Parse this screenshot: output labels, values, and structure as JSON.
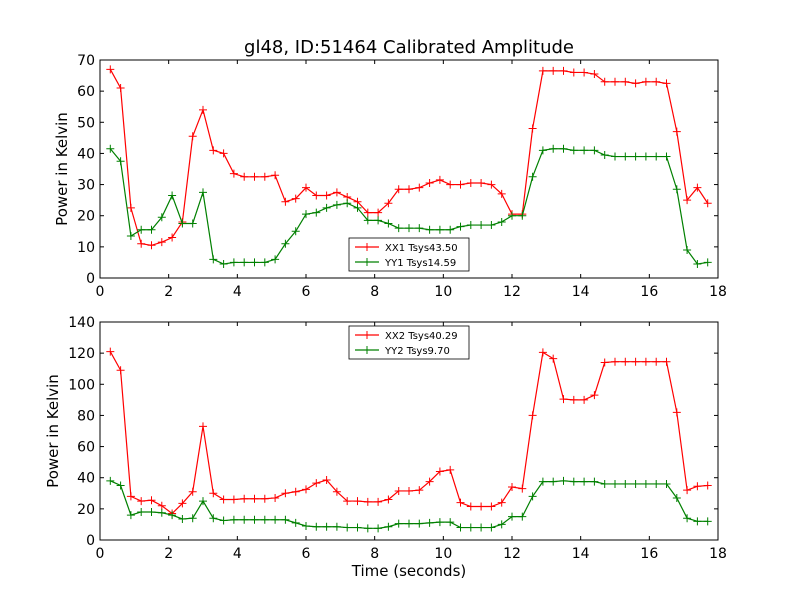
{
  "figure": {
    "title": "gl48, ID:51464 Calibrated Amplitude",
    "xlabel": "Time (seconds)"
  },
  "chart_data": [
    {
      "type": "line",
      "title": "gl48, ID:51464 Calibrated Amplitude",
      "xlabel": "",
      "ylabel": "Power in Kelvin",
      "xlim": [
        0,
        18
      ],
      "ylim": [
        0,
        70
      ],
      "xticks": [
        0,
        2,
        4,
        6,
        8,
        10,
        12,
        14,
        16,
        18
      ],
      "yticks": [
        0,
        10,
        20,
        30,
        40,
        50,
        60,
        70
      ],
      "grid": false,
      "legend": "lower-center",
      "x": [
        0.3,
        0.6,
        0.9,
        1.2,
        1.5,
        1.8,
        2.1,
        2.4,
        2.7,
        3.0,
        3.3,
        3.6,
        3.9,
        4.2,
        4.5,
        4.8,
        5.1,
        5.4,
        5.7,
        6.0,
        6.3,
        6.6,
        6.9,
        7.2,
        7.5,
        7.8,
        8.1,
        8.4,
        8.7,
        9.0,
        9.3,
        9.6,
        9.9,
        10.2,
        10.5,
        10.8,
        11.1,
        11.4,
        11.7,
        12.0,
        12.3,
        12.6,
        12.9,
        13.2,
        13.5,
        13.8,
        14.1,
        14.4,
        14.7,
        15.0,
        15.3,
        15.6,
        15.9,
        16.2,
        16.5,
        16.8,
        17.1,
        17.4,
        17.7
      ],
      "series": [
        {
          "name": "XX1 Tsys43.50",
          "color": "#ff0000",
          "values": [
            67,
            61,
            22.5,
            11,
            10.5,
            11.5,
            13,
            18,
            45.5,
            54,
            41,
            40,
            33.5,
            32.5,
            32.5,
            32.5,
            33,
            24.5,
            25.5,
            29,
            26.5,
            26.5,
            27.5,
            26,
            24.5,
            21,
            21,
            24,
            28.5,
            28.5,
            29,
            30.5,
            31.5,
            30,
            30,
            30.5,
            30.5,
            30,
            27,
            20.5,
            20.5,
            48,
            66.5,
            66.5,
            66.5,
            66,
            66,
            65.5,
            63,
            63,
            63,
            62.5,
            63,
            63,
            62.5,
            47,
            25,
            29,
            24
          ]
        },
        {
          "name": "YY1 Tsys14.59",
          "color": "#008000",
          "values": [
            41.5,
            37.5,
            13.5,
            15.5,
            15.5,
            19.5,
            26.5,
            17.5,
            17.5,
            27.5,
            6,
            4.5,
            5,
            5,
            5,
            5,
            6,
            11,
            15,
            20.5,
            21,
            22.5,
            23.5,
            24,
            22.5,
            18.5,
            18.5,
            17.5,
            16,
            16,
            16,
            15.5,
            15.5,
            15.5,
            16.5,
            17,
            17,
            17,
            18,
            20,
            20,
            32.5,
            41,
            41.5,
            41.5,
            41,
            41,
            41,
            39.5,
            39,
            39,
            39,
            39,
            39,
            39,
            28.5,
            9,
            4.5,
            5
          ]
        }
      ]
    },
    {
      "type": "line",
      "title": "",
      "xlabel": "Time (seconds)",
      "ylabel": "Power in Kelvin",
      "xlim": [
        0,
        18
      ],
      "ylim": [
        0,
        140
      ],
      "xticks": [
        0,
        2,
        4,
        6,
        8,
        10,
        12,
        14,
        16,
        18
      ],
      "yticks": [
        0,
        20,
        40,
        60,
        80,
        100,
        120,
        140
      ],
      "grid": false,
      "legend": "upper-center",
      "x": [
        0.3,
        0.6,
        0.9,
        1.2,
        1.5,
        1.8,
        2.1,
        2.4,
        2.7,
        3.0,
        3.3,
        3.6,
        3.9,
        4.2,
        4.5,
        4.8,
        5.1,
        5.4,
        5.7,
        6.0,
        6.3,
        6.6,
        6.9,
        7.2,
        7.5,
        7.8,
        8.1,
        8.4,
        8.7,
        9.0,
        9.3,
        9.6,
        9.9,
        10.2,
        10.5,
        10.8,
        11.1,
        11.4,
        11.7,
        12.0,
        12.3,
        12.6,
        12.9,
        13.2,
        13.5,
        13.8,
        14.1,
        14.4,
        14.7,
        15.0,
        15.3,
        15.6,
        15.9,
        16.2,
        16.5,
        16.8,
        17.1,
        17.4,
        17.7
      ],
      "series": [
        {
          "name": "XX2 Tsys40.29",
          "color": "#ff0000",
          "values": [
            121,
            109,
            28,
            25,
            25.5,
            22,
            17,
            23.5,
            31,
            73,
            30,
            26,
            26,
            26.5,
            26.5,
            26.5,
            27,
            30,
            31,
            32.5,
            36.5,
            38.5,
            31,
            25,
            25,
            24.5,
            24.5,
            26,
            31.5,
            31.5,
            32,
            37.5,
            44,
            45,
            24,
            21.5,
            21.5,
            21.5,
            24,
            34,
            33,
            80,
            120.5,
            116.5,
            90.5,
            90,
            90,
            93,
            114,
            114.5,
            114.5,
            114.5,
            114.5,
            114.5,
            114.5,
            82,
            32,
            34.5,
            35
          ]
        },
        {
          "name": "YY2 Tsys9.70",
          "color": "#008000",
          "values": [
            38,
            35,
            16,
            18,
            18,
            17.5,
            16,
            13.5,
            14,
            25,
            14,
            12.5,
            13,
            13,
            13,
            13,
            13,
            13,
            11,
            9,
            8.5,
            8.5,
            8.5,
            8,
            8,
            7.5,
            7.5,
            8.5,
            10.5,
            10.5,
            10.5,
            11,
            11.5,
            11.5,
            8,
            8,
            8,
            8,
            10,
            15,
            15,
            28,
            37.5,
            37.5,
            38,
            37.5,
            37.5,
            37.5,
            36,
            36,
            36,
            36,
            36,
            36,
            36,
            27,
            14,
            12,
            12
          ]
        }
      ]
    }
  ]
}
